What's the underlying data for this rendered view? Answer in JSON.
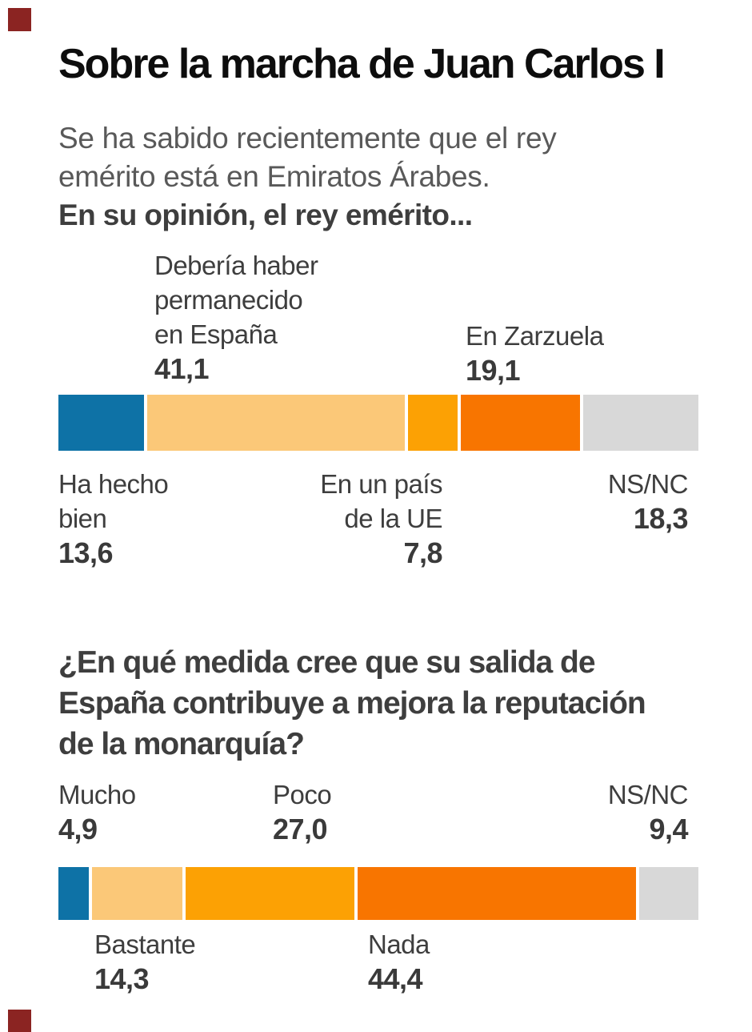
{
  "title": "Sobre la marcha de Juan Carlos I",
  "intro": {
    "line1": "Se ha sabido recientemente que el rey",
    "line2": "emérito está en Emiratos Árabes.",
    "bold_line": "En su opinión, el rey emérito..."
  },
  "question2": {
    "line1": "¿En qué medida cree que su salida de",
    "line2": "España contribuye a mejora la reputación",
    "line3": "de la monarquía?"
  },
  "chart_data": [
    {
      "type": "bar",
      "stacked": true,
      "orientation": "horizontal",
      "title": "En su opinión, el rey emérito...",
      "categories": [
        "Ha hecho bien",
        "Debería haber permanecido en España",
        "En un país de la UE",
        "En Zarzuela",
        "NS/NC"
      ],
      "values": [
        13.6,
        41.1,
        7.8,
        19.1,
        18.3
      ],
      "value_labels": [
        "13,6",
        "41,1",
        "7,8",
        "19,1",
        "18,3"
      ],
      "colors": [
        "#0e72a6",
        "#fbc878",
        "#fca104",
        "#f87500",
        "#d8d8d8"
      ],
      "unit": "percent",
      "xlim": [
        0,
        100
      ],
      "grid": false,
      "legend": "labels above and below bar"
    },
    {
      "type": "bar",
      "stacked": true,
      "orientation": "horizontal",
      "title": "¿En qué medida cree que su salida de España contribuye a mejora la reputación de la monarquía?",
      "categories": [
        "Mucho",
        "Bastante",
        "Poco",
        "Nada",
        "NS/NC"
      ],
      "values": [
        4.9,
        14.3,
        27.0,
        44.4,
        9.4
      ],
      "value_labels": [
        "4,9",
        "14,3",
        "27,0",
        "44,4",
        "9,4"
      ],
      "colors": [
        "#0e72a6",
        "#fbc878",
        "#fca104",
        "#f87500",
        "#d8d8d8"
      ],
      "unit": "percent",
      "xlim": [
        0,
        100
      ],
      "grid": false,
      "legend": "labels above and below bar"
    }
  ],
  "chart1_labels": {
    "deberia": {
      "l1": "Debería haber",
      "l2": "permanecido",
      "l3": "en España",
      "value": "41,1"
    },
    "zarzuela": {
      "l1": "En Zarzuela",
      "value": "19,1"
    },
    "hahecho": {
      "l1": "Ha hecho",
      "l2": "bien",
      "value": "13,6"
    },
    "pais": {
      "l1": "En un país",
      "l2": "de la UE",
      "value": "7,8"
    },
    "nsnc": {
      "l1": "NS/NC",
      "value": "18,3"
    }
  },
  "chart2_labels": {
    "mucho": {
      "l1": "Mucho",
      "value": "4,9"
    },
    "poco": {
      "l1": "Poco",
      "value": "27,0"
    },
    "nsnc": {
      "l1": "NS/NC",
      "value": "9,4"
    },
    "bastante": {
      "l1": "Bastante",
      "value": "14,3"
    },
    "nada": {
      "l1": "Nada",
      "value": "44,4"
    }
  },
  "colors": {
    "blue": "#0e72a6",
    "light_orange": "#fbc878",
    "mid_orange": "#fca104",
    "dark_orange": "#f87500",
    "gray": "#d8d8d8",
    "corner_marker": "#8b2422",
    "title_text": "#0d0d0d",
    "body_text": "#595959",
    "label_text": "#3e3e3e"
  }
}
